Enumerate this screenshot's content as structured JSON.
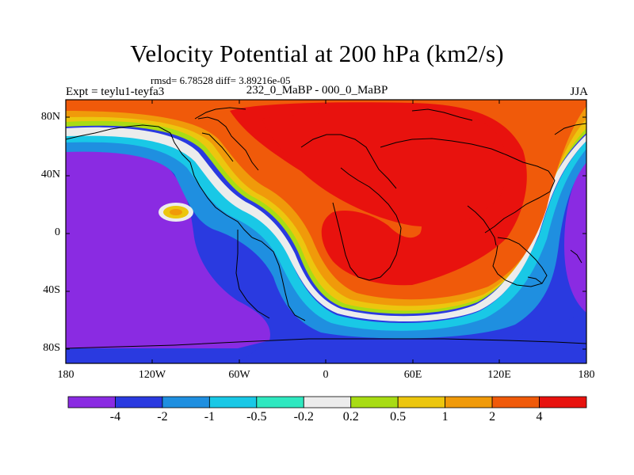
{
  "title": "Velocity Potential at 200 hPa (km2/s)",
  "stats": "rmsd= 6.78528 diff= 3.89216e-05",
  "left_string": "Expt = teylu1-teyfa3",
  "center_string": "232_0_MaBP - 000_0_MaBP",
  "right_string": "JJA",
  "lat_ticks": [
    "80N",
    "40N",
    "0",
    "40S",
    "80S"
  ],
  "lon_ticks": [
    "180",
    "120W",
    "60W",
    "0",
    "60E",
    "120E",
    "180"
  ],
  "colorbar": {
    "labels": [
      "-4",
      "-2",
      "-1",
      "-0.5",
      "-0.2",
      "0.2",
      "0.5",
      "1",
      "2",
      "4"
    ],
    "colors": [
      "#8a2be2",
      "#2a3ae0",
      "#1f8fe0",
      "#19c8e6",
      "#2fe8c0",
      "#ececec",
      "#a8dc14",
      "#ecc60e",
      "#f09a0a",
      "#f05a0a",
      "#e8120e"
    ]
  }
}
